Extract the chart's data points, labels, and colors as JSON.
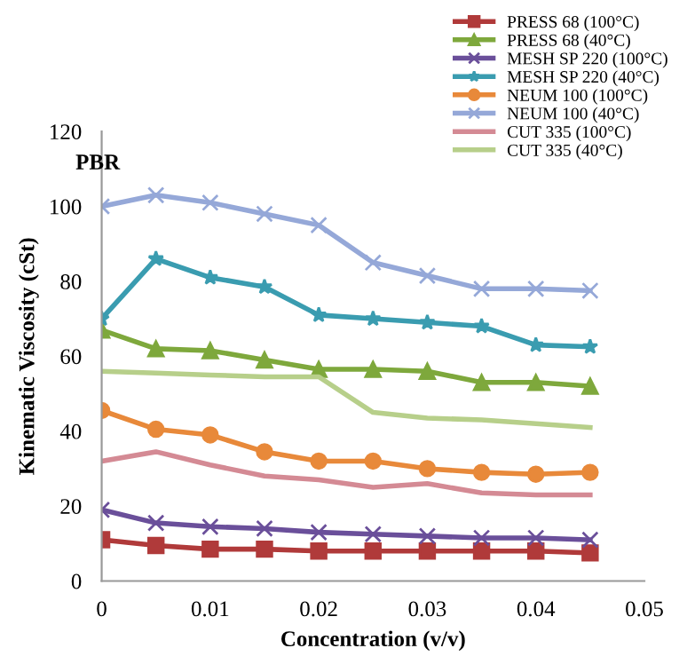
{
  "chart_data": {
    "type": "line",
    "title": "PBR",
    "xlabel": "Concentration (v/v)",
    "ylabel": "Kinematic Viscosity (cSt)",
    "x": [
      0,
      0.005,
      0.01,
      0.015,
      0.02,
      0.025,
      0.03,
      0.035,
      0.04,
      0.045
    ],
    "xlim": [
      0,
      0.05
    ],
    "xticks": [
      0,
      0.01,
      0.02,
      0.03,
      0.04,
      0.05
    ],
    "ylim": [
      0,
      120
    ],
    "yticks": [
      0,
      20,
      40,
      60,
      80,
      100,
      120
    ],
    "grid": false,
    "legend": "top right",
    "series": [
      {
        "name": "PRESS 68 (100°C)",
        "color": "#b03a3a",
        "marker": "square",
        "values": [
          11,
          9.5,
          8.5,
          8.5,
          8,
          8,
          8,
          8,
          8,
          7.5
        ]
      },
      {
        "name": "PRESS 68 (40°C)",
        "color": "#7ea83c",
        "marker": "triangle",
        "values": [
          67,
          62,
          61.5,
          59,
          56.5,
          56.5,
          56,
          53,
          53,
          52
        ]
      },
      {
        "name": "MESH SP 220 (100°C)",
        "color": "#6a4f9a",
        "marker": "cross",
        "values": [
          19,
          15.5,
          14.5,
          14,
          13,
          12.5,
          12,
          11.5,
          11.5,
          11
        ]
      },
      {
        "name": "MESH SP 220 (40°C)",
        "color": "#3a9cb0",
        "marker": "star",
        "values": [
          70,
          86,
          81,
          78.5,
          71,
          70,
          69,
          68,
          63,
          62.5
        ]
      },
      {
        "name": "NEUM 100 (100°C)",
        "color": "#e8893a",
        "marker": "circle",
        "values": [
          45.5,
          40.5,
          39,
          34.5,
          32,
          32,
          30,
          29,
          28.5,
          29
        ]
      },
      {
        "name": "NEUM 100 (40°C)",
        "color": "#95a8d8",
        "marker": "cross",
        "values": [
          100,
          103,
          101,
          98,
          95,
          85,
          81.5,
          78,
          78,
          77.5
        ]
      },
      {
        "name": "CUT 335 (100°C)",
        "color": "#d48a94",
        "marker": "none",
        "values": [
          32,
          34.5,
          31,
          28,
          27,
          25,
          26,
          23.5,
          23,
          23
        ]
      },
      {
        "name": "CUT 335 (40°C)",
        "color": "#b7cf8a",
        "marker": "none",
        "values": [
          56,
          55.5,
          55,
          54.5,
          54.5,
          45,
          43.5,
          43,
          42,
          41
        ]
      }
    ]
  }
}
